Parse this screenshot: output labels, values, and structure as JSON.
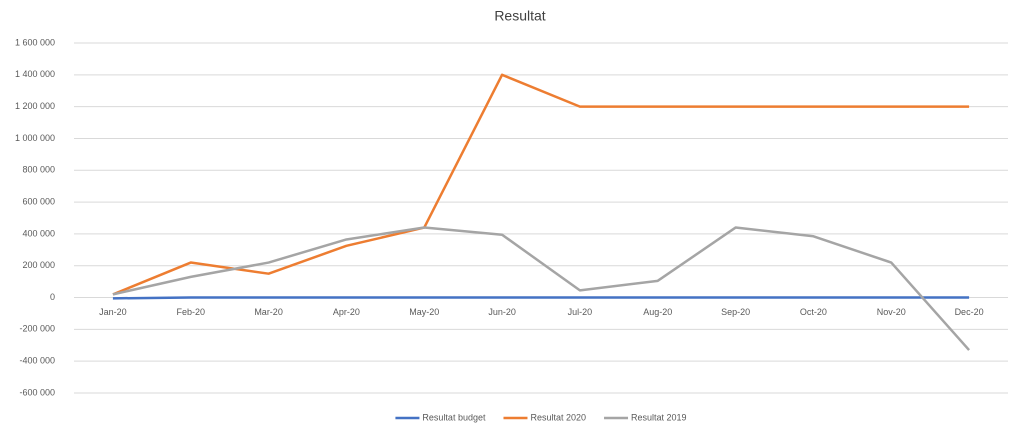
{
  "chart_data": {
    "type": "line",
    "title": "Resultat",
    "categories": [
      "Jan-20",
      "Feb-20",
      "Mar-20",
      "Apr-20",
      "May-20",
      "Jun-20",
      "Jul-20",
      "Aug-20",
      "Sep-20",
      "Oct-20",
      "Nov-20",
      "Dec-20"
    ],
    "series": [
      {
        "name": "Resultat budget",
        "color": "#4472c4",
        "values": [
          -5000,
          0,
          0,
          0,
          0,
          0,
          0,
          0,
          0,
          0,
          0,
          0
        ]
      },
      {
        "name": "Resultat 2020",
        "color": "#ed7d31",
        "values": [
          20000,
          220000,
          150000,
          325000,
          440000,
          1400000,
          1200000,
          1200000,
          1200000,
          1200000,
          1200000,
          1200000
        ]
      },
      {
        "name": "Resultat 2019",
        "color": "#a5a5a5",
        "values": [
          20000,
          130000,
          220000,
          365000,
          440000,
          395000,
          45000,
          105000,
          440000,
          385000,
          220000,
          -330000
        ]
      }
    ],
    "ylim": [
      -600000,
      1600000
    ],
    "yticks": [
      {
        "value": -600000,
        "label": "-600 000"
      },
      {
        "value": -400000,
        "label": "-400 000"
      },
      {
        "value": -200000,
        "label": "-200 000"
      },
      0,
      {
        "value": 200000,
        "label": "200 000"
      },
      {
        "value": 400000,
        "label": "400 000"
      },
      {
        "value": 600000,
        "label": "600 000"
      },
      {
        "value": 800000,
        "label": "800 000"
      },
      {
        "value": 1000000,
        "label": "1 000 000"
      },
      {
        "value": 1200000,
        "label": "1 200 000"
      },
      {
        "value": 1400000,
        "label": "1 400 000"
      },
      {
        "value": 1600000,
        "label": "1 600 000"
      }
    ],
    "grid": true,
    "legend": "bottom"
  }
}
